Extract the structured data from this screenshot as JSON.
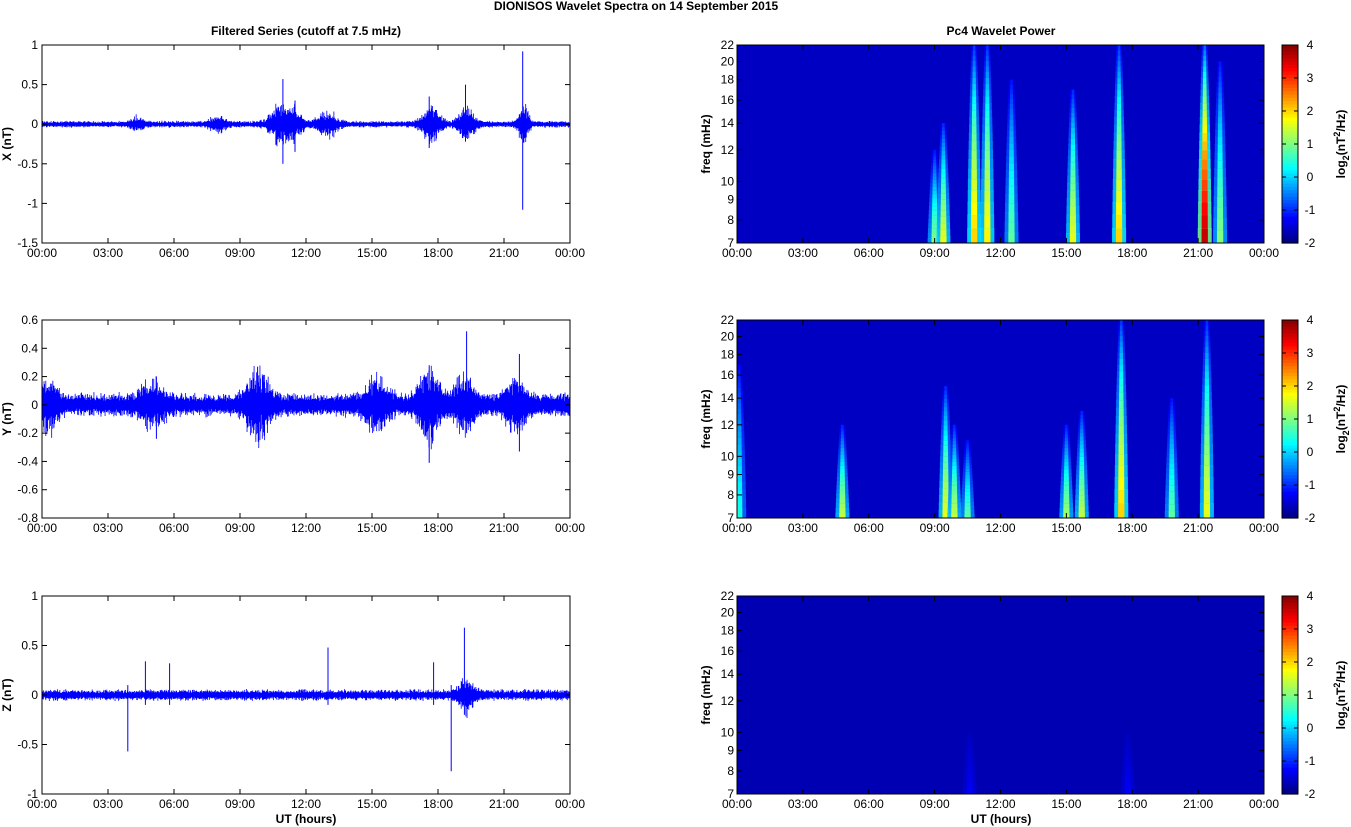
{
  "figure": {
    "suptitle": "DIONISOS Wavelet Spectra on 14 September 2015",
    "left_title": "Filtered Series (cutoff at 7.5 mHz)",
    "right_title": "Pc4 Wavelet Power",
    "xlabel": "UT (hours)"
  },
  "chart_data": [
    {
      "type": "line",
      "title": "Filtered Series (cutoff at 7.5 mHz)",
      "ylabel": "X (nT)",
      "xlim": [
        0,
        24
      ],
      "ylim": [
        -1.5,
        1
      ],
      "xticks": [
        "00:00",
        "03:00",
        "06:00",
        "09:00",
        "12:00",
        "15:00",
        "18:00",
        "21:00",
        "00:00"
      ],
      "yticks": [
        "1",
        "0.5",
        "0",
        "-0.5",
        "-1",
        "-1.5"
      ],
      "ytick_values": [
        1,
        0.5,
        0,
        -0.5,
        -1,
        -1.5
      ],
      "noise_amplitude": 0.03,
      "color": "#0000ff",
      "bursts": [
        {
          "t": 4.3,
          "amp": 0.06,
          "w": 0.3
        },
        {
          "t": 8.0,
          "amp": 0.06,
          "w": 0.4
        },
        {
          "t": 10.8,
          "amp": 0.15,
          "w": 0.5
        },
        {
          "t": 11.5,
          "amp": 0.12,
          "w": 0.4
        },
        {
          "t": 13.0,
          "amp": 0.1,
          "w": 0.5
        },
        {
          "t": 17.7,
          "amp": 0.14,
          "w": 0.5
        },
        {
          "t": 19.3,
          "amp": 0.13,
          "w": 0.4
        },
        {
          "t": 21.9,
          "amp": 0.18,
          "w": 0.25
        }
      ],
      "spikes": [
        {
          "t": 10.95,
          "max": 0.57,
          "min": -0.5
        },
        {
          "t": 11.5,
          "max": 0.3,
          "min": -0.35
        },
        {
          "t": 17.6,
          "max": 0.35,
          "min": -0.3
        },
        {
          "t": 19.25,
          "max": 0.5,
          "min": -0.22
        },
        {
          "t": 21.85,
          "max": 0.92,
          "min": -1.08
        }
      ]
    },
    {
      "type": "line",
      "ylabel": "Y (nT)",
      "xlim": [
        0,
        24
      ],
      "ylim": [
        -0.8,
        0.6
      ],
      "xticks": [
        "00:00",
        "03:00",
        "06:00",
        "09:00",
        "12:00",
        "15:00",
        "18:00",
        "21:00",
        "00:00"
      ],
      "yticks": [
        "0.6",
        "0.4",
        "0.2",
        "0",
        "-0.2",
        "-0.4",
        "-0.6",
        "-0.8"
      ],
      "ytick_values": [
        0.6,
        0.4,
        0.2,
        0,
        -0.2,
        -0.4,
        -0.6,
        -0.8
      ],
      "noise_amplitude": 0.06,
      "color": "#0000ff",
      "bursts": [
        {
          "t": 0.3,
          "amp": 0.1,
          "w": 0.4
        },
        {
          "t": 5.0,
          "amp": 0.1,
          "w": 0.6
        },
        {
          "t": 9.8,
          "amp": 0.14,
          "w": 0.6
        },
        {
          "t": 15.2,
          "amp": 0.1,
          "w": 0.6
        },
        {
          "t": 17.6,
          "amp": 0.16,
          "w": 0.5
        },
        {
          "t": 19.2,
          "amp": 0.12,
          "w": 0.5
        },
        {
          "t": 21.5,
          "amp": 0.12,
          "w": 0.5
        }
      ],
      "spikes": [
        {
          "t": 5.2,
          "max": 0.2,
          "min": -0.24
        },
        {
          "t": 9.8,
          "max": 0.27,
          "min": -0.2
        },
        {
          "t": 17.6,
          "max": 0.28,
          "min": -0.41
        },
        {
          "t": 19.3,
          "max": 0.52,
          "min": -0.2
        },
        {
          "t": 21.7,
          "max": 0.36,
          "min": -0.33
        }
      ]
    },
    {
      "type": "line",
      "ylabel": "Z (nT)",
      "xlabel": "UT (hours)",
      "xlim": [
        0,
        24
      ],
      "ylim": [
        -1,
        1
      ],
      "xticks": [
        "00:00",
        "03:00",
        "06:00",
        "09:00",
        "12:00",
        "15:00",
        "18:00",
        "21:00",
        "00:00"
      ],
      "yticks": [
        "1",
        "0.5",
        "0",
        "-0.5",
        "-1"
      ],
      "ytick_values": [
        1,
        0.5,
        0,
        -0.5,
        -1
      ],
      "noise_amplitude": 0.04,
      "color": "#0000ff",
      "bursts": [
        {
          "t": 19.3,
          "amp": 0.1,
          "w": 0.4
        }
      ],
      "spikes": [
        {
          "t": 3.9,
          "max": 0.1,
          "min": -0.57
        },
        {
          "t": 4.7,
          "max": 0.34,
          "min": -0.1
        },
        {
          "t": 5.8,
          "max": 0.32,
          "min": -0.1
        },
        {
          "t": 13.0,
          "max": 0.48,
          "min": -0.1
        },
        {
          "t": 17.8,
          "max": 0.33,
          "min": -0.1
        },
        {
          "t": 18.6,
          "max": 0.1,
          "min": -0.77
        },
        {
          "t": 19.2,
          "max": 0.68,
          "min": -0.2
        }
      ]
    },
    {
      "type": "heatmap",
      "title": "Pc4 Wavelet Power",
      "ylabel": "freq (mHz)",
      "xlim": [
        0,
        24
      ],
      "ylim": [
        7,
        22
      ],
      "xticks": [
        "00:00",
        "03:00",
        "06:00",
        "09:00",
        "12:00",
        "15:00",
        "18:00",
        "21:00",
        "00:00"
      ],
      "yticks": [
        "22",
        "20",
        "18",
        "16",
        "14",
        "12",
        "10",
        "9",
        "8",
        "7"
      ],
      "ytick_values": [
        22,
        20,
        18,
        16,
        14,
        12,
        10,
        9,
        8,
        7
      ],
      "colorbar": {
        "label": "log2(nT2/Hz)",
        "label_base": "log",
        "label_sub": "2",
        "label_mid": "(nT",
        "label_sup": "2",
        "label_end": "/Hz)",
        "ticks": [
          "4",
          "3",
          "2",
          "1",
          "0",
          "-1",
          "-2"
        ],
        "tick_values": [
          4,
          3,
          2,
          1,
          0,
          -1,
          -2
        ],
        "range": [
          -2,
          4
        ]
      },
      "background_level": -1.6,
      "streaks": [
        {
          "t": 9.0,
          "fmax": 12,
          "level": 1.0
        },
        {
          "t": 9.4,
          "fmax": 14,
          "level": 1.6
        },
        {
          "t": 10.8,
          "fmax": 22,
          "level": 2.0
        },
        {
          "t": 11.4,
          "fmax": 22,
          "level": 1.8
        },
        {
          "t": 12.5,
          "fmax": 18,
          "level": 0.8
        },
        {
          "t": 15.3,
          "fmax": 17,
          "level": 1.6
        },
        {
          "t": 17.4,
          "fmax": 22,
          "level": 2.0
        },
        {
          "t": 21.3,
          "fmax": 22,
          "level": 3.6
        },
        {
          "t": 22.0,
          "fmax": 20,
          "level": 1.0
        }
      ]
    },
    {
      "type": "heatmap",
      "ylabel": "freq (mHz)",
      "xlim": [
        0,
        24
      ],
      "ylim": [
        7,
        22
      ],
      "xticks": [
        "00:00",
        "03:00",
        "06:00",
        "09:00",
        "12:00",
        "15:00",
        "18:00",
        "21:00",
        "00:00"
      ],
      "yticks": [
        "22",
        "20",
        "18",
        "16",
        "14",
        "12",
        "10",
        "9",
        "8",
        "7"
      ],
      "ytick_values": [
        22,
        20,
        18,
        16,
        14,
        12,
        10,
        9,
        8,
        7
      ],
      "colorbar": {
        "label": "log2(nT2/Hz)",
        "label_base": "log",
        "label_sub": "2",
        "label_mid": "(nT",
        "label_sup": "2",
        "label_end": "/Hz)",
        "ticks": [
          "4",
          "3",
          "2",
          "1",
          "0",
          "-1",
          "-2"
        ],
        "tick_values": [
          4,
          3,
          2,
          1,
          0,
          -1,
          -2
        ],
        "range": [
          -2,
          4
        ]
      },
      "background_level": -1.6,
      "streaks": [
        {
          "t": 0.1,
          "fmax": 17,
          "level": 0.4
        },
        {
          "t": 4.8,
          "fmax": 12,
          "level": 1.4
        },
        {
          "t": 9.5,
          "fmax": 15,
          "level": 1.6
        },
        {
          "t": 9.9,
          "fmax": 12,
          "level": 1.4
        },
        {
          "t": 10.5,
          "fmax": 11,
          "level": 0.8
        },
        {
          "t": 15.0,
          "fmax": 12,
          "level": 1.2
        },
        {
          "t": 15.7,
          "fmax": 13,
          "level": 1.4
        },
        {
          "t": 17.5,
          "fmax": 22,
          "level": 2.0
        },
        {
          "t": 19.8,
          "fmax": 14,
          "level": 0.8
        },
        {
          "t": 21.4,
          "fmax": 22,
          "level": 1.6
        }
      ]
    },
    {
      "type": "heatmap",
      "xlabel": "UT (hours)",
      "ylabel": "freq (mHz)",
      "xlim": [
        0,
        24
      ],
      "ylim": [
        7,
        22
      ],
      "xticks": [
        "00:00",
        "03:00",
        "06:00",
        "09:00",
        "12:00",
        "15:00",
        "18:00",
        "21:00",
        "00:00"
      ],
      "yticks": [
        "22",
        "20",
        "18",
        "16",
        "14",
        "12",
        "10",
        "9",
        "8",
        "7"
      ],
      "ytick_values": [
        22,
        20,
        18,
        16,
        14,
        12,
        10,
        9,
        8,
        7
      ],
      "colorbar": {
        "label": "log2(nT2/Hz)",
        "label_base": "log",
        "label_sub": "2",
        "label_mid": "(nT",
        "label_sup": "2",
        "label_end": "/Hz)",
        "ticks": [
          "4",
          "3",
          "2",
          "1",
          "0",
          "-1",
          "-2"
        ],
        "tick_values": [
          4,
          3,
          2,
          1,
          0,
          -1,
          -2
        ],
        "range": [
          -2,
          4
        ]
      },
      "background_level": -1.7,
      "streaks": [
        {
          "t": 10.6,
          "fmax": 10,
          "level": -1.3
        },
        {
          "t": 17.8,
          "fmax": 10,
          "level": -1.3
        }
      ]
    }
  ]
}
